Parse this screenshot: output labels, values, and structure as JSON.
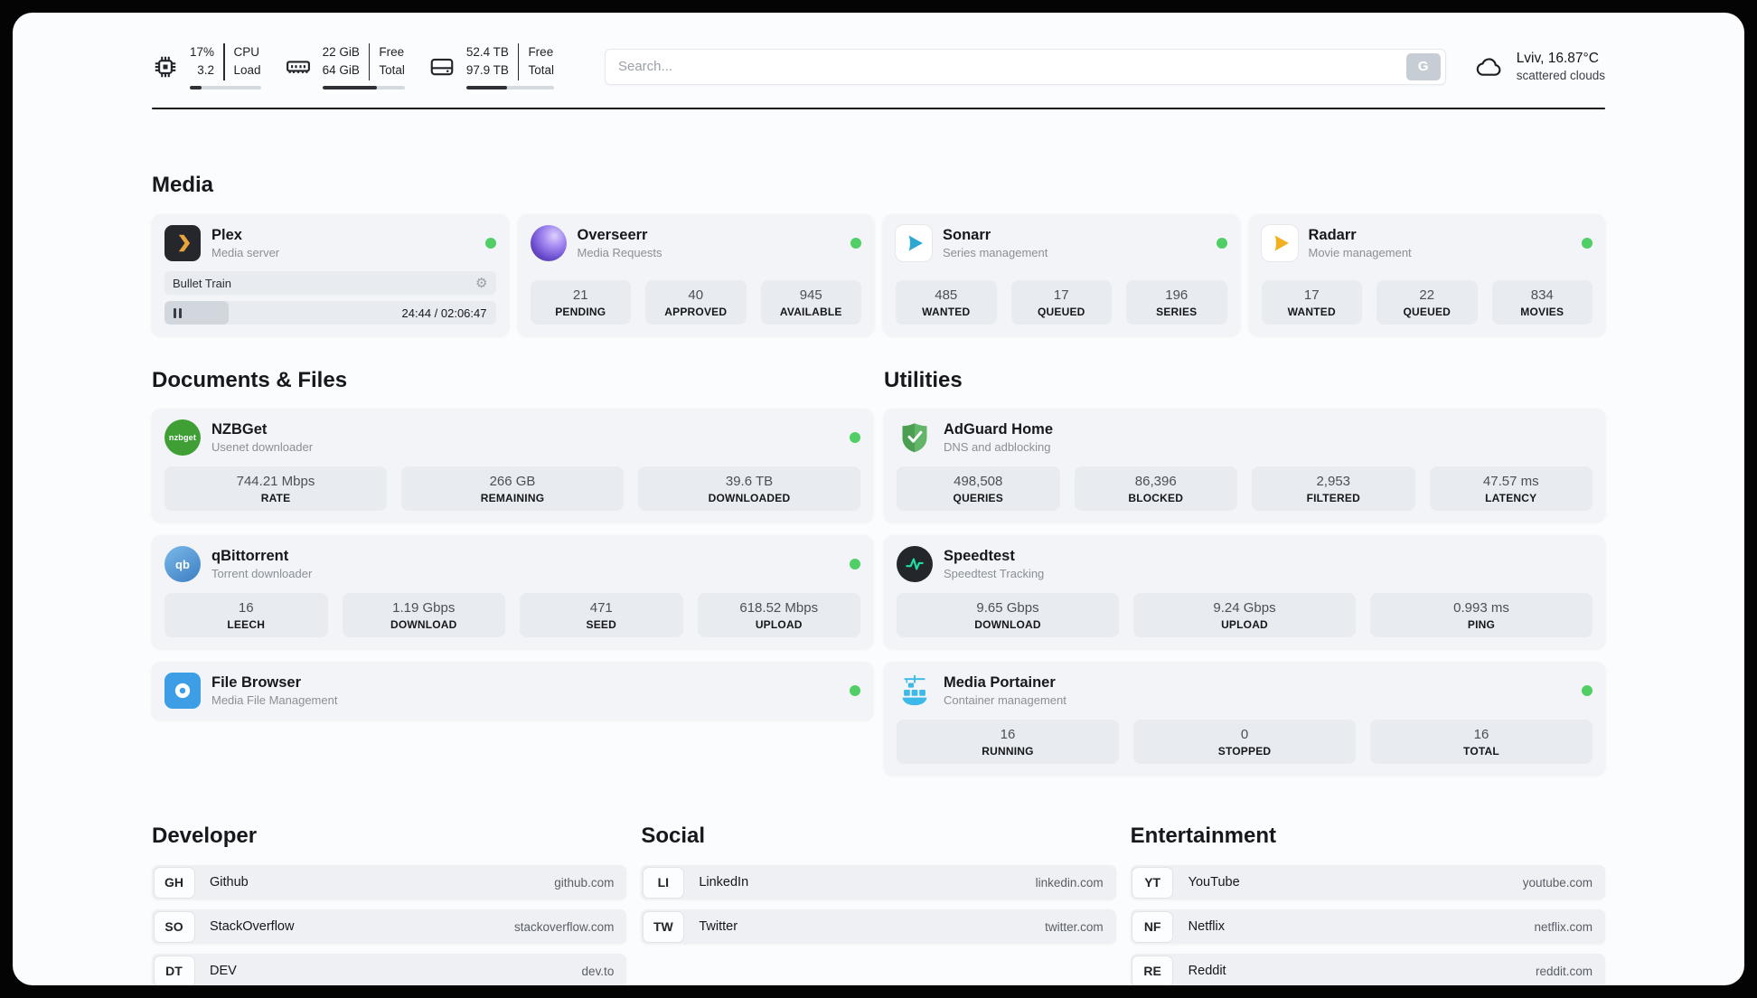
{
  "header": {
    "cpu": {
      "value1": "17%",
      "value2": "3.2",
      "label1": "CPU",
      "label2": "Load",
      "bar_percent": 17
    },
    "memory": {
      "value1": "22 GiB",
      "value2": "64 GiB",
      "label1": "Free",
      "label2": "Total",
      "bar_percent": 66
    },
    "storage": {
      "value1": "52.4 TB",
      "value2": "97.9 TB",
      "label1": "Free",
      "label2": "Total",
      "bar_percent": 46
    },
    "search": {
      "placeholder": "Search...",
      "button_label": "G"
    },
    "weather": {
      "location": "Lviv, 16.87°C",
      "condition": "scattered clouds"
    }
  },
  "sections": {
    "media": {
      "title": "Media",
      "apps": [
        {
          "name": "Plex",
          "subtitle": "Media server",
          "status": "online",
          "player": {
            "track": "Bullet Train",
            "time": "24:44 / 02:06:47",
            "progress_percent": 19.5
          }
        },
        {
          "name": "Overseerr",
          "subtitle": "Media Requests",
          "status": "online",
          "stats": [
            {
              "value": "21",
              "label": "PENDING"
            },
            {
              "value": "40",
              "label": "APPROVED"
            },
            {
              "value": "945",
              "label": "AVAILABLE"
            }
          ]
        },
        {
          "name": "Sonarr",
          "subtitle": "Series management",
          "status": "online",
          "stats": [
            {
              "value": "485",
              "label": "WANTED"
            },
            {
              "value": "17",
              "label": "QUEUED"
            },
            {
              "value": "196",
              "label": "SERIES"
            }
          ]
        },
        {
          "name": "Radarr",
          "subtitle": "Movie management",
          "status": "online",
          "stats": [
            {
              "value": "17",
              "label": "WANTED"
            },
            {
              "value": "22",
              "label": "QUEUED"
            },
            {
              "value": "834",
              "label": "MOVIES"
            }
          ]
        }
      ]
    },
    "documents": {
      "title": "Documents & Files",
      "apps": [
        {
          "name": "NZBGet",
          "subtitle": "Usenet downloader",
          "status": "online",
          "icon_text": "nzbget",
          "stats": [
            {
              "value": "744.21 Mbps",
              "label": "RATE"
            },
            {
              "value": "266 GB",
              "label": "REMAINING"
            },
            {
              "value": "39.6 TB",
              "label": "DOWNLOADED"
            }
          ]
        },
        {
          "name": "qBittorrent",
          "subtitle": "Torrent downloader",
          "status": "online",
          "icon_text": "qb",
          "stats": [
            {
              "value": "16",
              "label": "LEECH"
            },
            {
              "value": "1.19 Gbps",
              "label": "DOWNLOAD"
            },
            {
              "value": "471",
              "label": "SEED"
            },
            {
              "value": "618.52 Mbps",
              "label": "UPLOAD"
            }
          ]
        },
        {
          "name": "File Browser",
          "subtitle": "Media File Management",
          "status": "online"
        }
      ]
    },
    "utilities": {
      "title": "Utilities",
      "apps": [
        {
          "name": "AdGuard Home",
          "subtitle": "DNS and adblocking",
          "stats": [
            {
              "value": "498,508",
              "label": "QUERIES"
            },
            {
              "value": "86,396",
              "label": "BLOCKED"
            },
            {
              "value": "2,953",
              "label": "FILTERED"
            },
            {
              "value": "47.57 ms",
              "label": "LATENCY"
            }
          ]
        },
        {
          "name": "Speedtest",
          "subtitle": "Speedtest Tracking",
          "stats": [
            {
              "value": "9.65 Gbps",
              "label": "DOWNLOAD"
            },
            {
              "value": "9.24 Gbps",
              "label": "UPLOAD"
            },
            {
              "value": "0.993 ms",
              "label": "PING"
            }
          ]
        },
        {
          "name": "Media Portainer",
          "subtitle": "Container management",
          "status": "online",
          "stats": [
            {
              "value": "16",
              "label": "RUNNING"
            },
            {
              "value": "0",
              "label": "STOPPED"
            },
            {
              "value": "16",
              "label": "TOTAL"
            }
          ]
        }
      ]
    },
    "bookmarks": [
      {
        "title": "Developer",
        "links": [
          {
            "abbr": "GH",
            "name": "Github",
            "url": "github.com"
          },
          {
            "abbr": "SO",
            "name": "StackOverflow",
            "url": "stackoverflow.com"
          },
          {
            "abbr": "DT",
            "name": "DEV",
            "url": "dev.to"
          }
        ]
      },
      {
        "title": "Social",
        "links": [
          {
            "abbr": "LI",
            "name": "LinkedIn",
            "url": "linkedin.com"
          },
          {
            "abbr": "TW",
            "name": "Twitter",
            "url": "twitter.com"
          }
        ]
      },
      {
        "title": "Entertainment",
        "links": [
          {
            "abbr": "YT",
            "name": "YouTube",
            "url": "youtube.com"
          },
          {
            "abbr": "NF",
            "name": "Netflix",
            "url": "netflix.com"
          },
          {
            "abbr": "RE",
            "name": "Reddit",
            "url": "reddit.com"
          }
        ]
      }
    ]
  },
  "colors": {
    "status_online": "#51cf66",
    "background": "#fbfcfd",
    "card": "#f2f4f7",
    "stat_box": "#e8ebf0"
  }
}
